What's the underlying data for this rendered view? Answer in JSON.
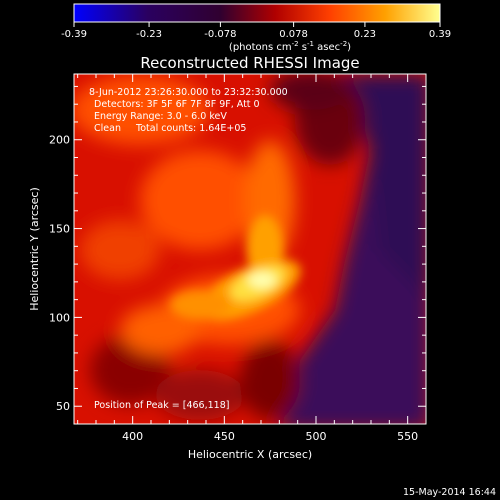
{
  "chart_data": {
    "type": "heatmap",
    "title": "Reconstructed RHESSI Image",
    "xlabel": "Heliocentric X (arcsec)",
    "ylabel": "Heliocentric Y (arcsec)",
    "xlim": [
      368,
      560
    ],
    "ylim": [
      40,
      237
    ],
    "x_ticks": [
      "400",
      "450",
      "500",
      "550"
    ],
    "y_ticks": [
      "50",
      "100",
      "150",
      "200"
    ],
    "colorbar": {
      "tick_labels": [
        "-0.39",
        "-0.23",
        "-0.078",
        "0.078",
        "0.23",
        "0.39"
      ],
      "range": [
        -0.39,
        0.39
      ],
      "units_text": "(photons cm",
      "units_exp1": "-2",
      "units_mid": " s",
      "units_exp2": "-1",
      "units_end": " asec",
      "units_exp3": "-2",
      "units_close": ")",
      "colors": [
        "#0000ff",
        "#2a0060",
        "#000000",
        "#d00000",
        "#ff9000",
        "#ffff80"
      ]
    },
    "annotations": [
      " 8-Jun-2012 23:26:30.000 to 23:32:30.000",
      "Detectors: 3F 5F 6F 7F 8F 9F, Att 0",
      "Energy Range: 3.0 - 6.0 keV",
      "Clean     Total counts: 1.64E+05"
    ],
    "peak_label": "Position of Peak = [466,118]",
    "peak": [
      466,
      118
    ],
    "timestamp": "15-May-2014 16:44"
  }
}
